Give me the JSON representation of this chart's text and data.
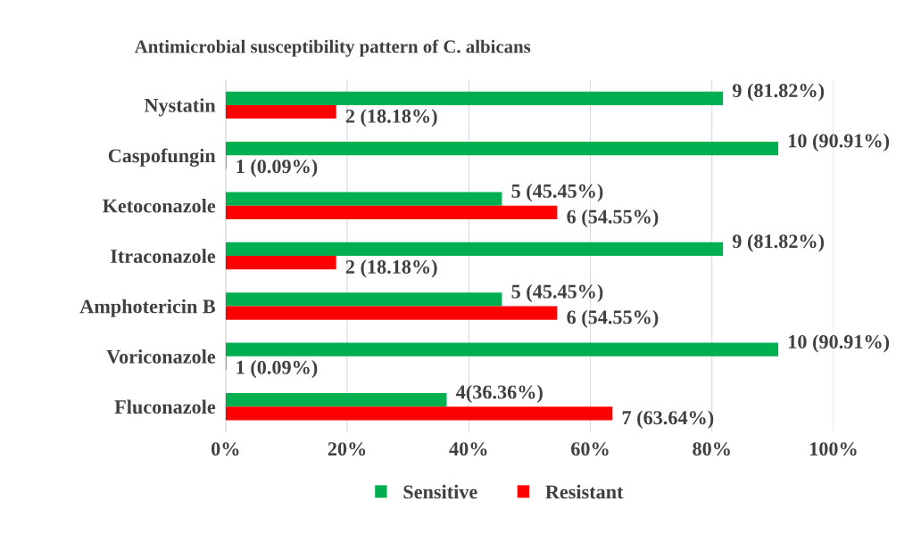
{
  "chart_data": {
    "type": "bar",
    "orientation": "horizontal",
    "title": "Antimicrobial susceptibility pattern of C. albicans",
    "categories": [
      "Nystatin",
      "Caspofungin",
      "Ketoconazole",
      "Itraconazole",
      "Amphotericin B",
      "Voriconazole",
      "Fluconazole"
    ],
    "series": [
      {
        "name": "Sensitive",
        "color": "#00b050",
        "values": [
          81.82,
          90.91,
          45.45,
          81.82,
          45.45,
          90.91,
          36.36
        ],
        "value_labels": [
          "9 (81.82%)",
          "10 (90.91%)",
          "5 (45.45%)",
          "9 (81.82%)",
          "5 (45.45%)",
          "10 (90.91%)",
          "4(36.36%)"
        ]
      },
      {
        "name": "Resistant",
        "color": "#ff0000",
        "values": [
          18.18,
          0.09,
          54.55,
          18.18,
          54.55,
          0.09,
          63.64
        ],
        "value_labels": [
          "2 (18.18%)",
          "1 (0.09%)",
          "6 (54.55%)",
          "2 (18.18%)",
          "6 (54.55%)",
          "1 (0.09%)",
          "7 (63.64%)"
        ]
      }
    ],
    "xlim": [
      0,
      100
    ],
    "xticks": [
      {
        "value": 0,
        "label": "0%"
      },
      {
        "value": 20,
        "label": "20%"
      },
      {
        "value": 40,
        "label": "40%"
      },
      {
        "value": 60,
        "label": "60%"
      },
      {
        "value": 80,
        "label": "80%"
      },
      {
        "value": 100,
        "label": "100%"
      }
    ],
    "grid": "x",
    "legend": "bottom"
  }
}
